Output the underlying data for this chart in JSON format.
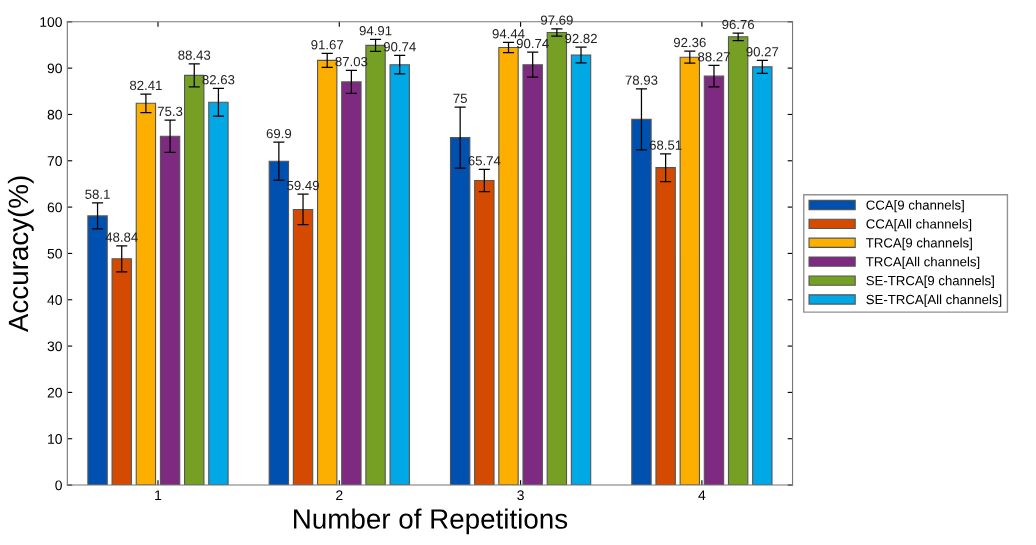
{
  "chart_data": {
    "type": "bar",
    "xlabel": "Number of Repetitions",
    "ylabel": "Accuracy(%)",
    "categories": [
      "1",
      "2",
      "3",
      "4"
    ],
    "series": [
      {
        "name": "CCA[9 channels]",
        "color": "#0050b0",
        "values": [
          58.1,
          69.9,
          75,
          78.93
        ],
        "errors": [
          2.8,
          4.1,
          6.6,
          6.6
        ]
      },
      {
        "name": "CCA[All channels]",
        "color": "#d44a00",
        "values": [
          48.84,
          59.49,
          65.74,
          68.51
        ],
        "errors": [
          2.8,
          3.3,
          2.4,
          3.0
        ]
      },
      {
        "name": "TRCA[9 channels]",
        "color": "#fdaf00",
        "values": [
          82.41,
          91.67,
          94.44,
          92.36
        ],
        "errors": [
          2.0,
          1.5,
          1.1,
          1.3
        ]
      },
      {
        "name": "TRCA[All channels]",
        "color": "#7e2a80",
        "values": [
          75.3,
          87.03,
          90.74,
          88.27
        ],
        "errors": [
          3.5,
          2.5,
          2.7,
          2.3
        ]
      },
      {
        "name": "SE-TRCA[9 channels]",
        "color": "#76a023",
        "values": [
          88.43,
          94.91,
          97.69,
          96.76
        ],
        "errors": [
          2.5,
          1.3,
          0.8,
          0.8
        ]
      },
      {
        "name": "SE-TRCA[All channels]",
        "color": "#00a9e6",
        "values": [
          82.63,
          90.74,
          92.82,
          90.27
        ],
        "errors": [
          3.0,
          2.0,
          1.7,
          1.4
        ]
      }
    ],
    "ylim": [
      0,
      100
    ],
    "yticks": [
      0,
      10,
      20,
      30,
      40,
      50,
      60,
      70,
      80,
      90,
      100
    ],
    "data_labels": true,
    "legend": "right",
    "grid": false
  }
}
